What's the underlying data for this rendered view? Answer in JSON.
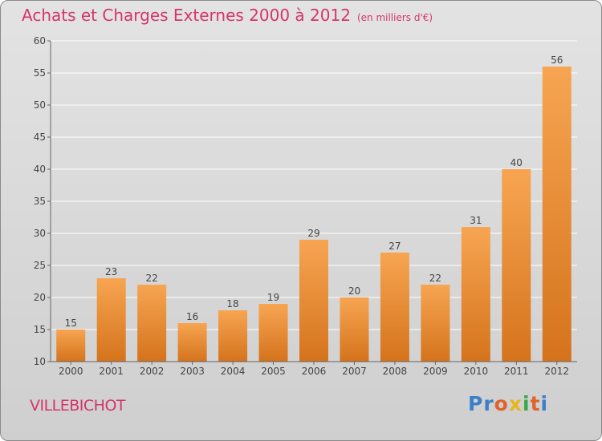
{
  "header": {
    "title": "Achats et Charges Externes 2000 à 2012",
    "unit": "(en milliers d'€)"
  },
  "footer": {
    "commune": "VILLEBICHOT",
    "logo_text": "Proxiti",
    "logo_colors": [
      "#3a7fc8",
      "#3a7fc8",
      "#e0632a",
      "#e7b61c",
      "#3aa84a",
      "#e0632a",
      "#3a7fc8"
    ]
  },
  "colors": {
    "bar_light": "#f7a552",
    "bar_dark": "#d5731c",
    "title": "#d4356b",
    "grid": "#ffffff",
    "axis": "#666666"
  },
  "chart_data": {
    "type": "bar",
    "categories": [
      "2000",
      "2001",
      "2002",
      "2003",
      "2004",
      "2005",
      "2006",
      "2007",
      "2008",
      "2009",
      "2010",
      "2011",
      "2012"
    ],
    "values": [
      15,
      23,
      22,
      16,
      18,
      19,
      29,
      20,
      27,
      22,
      31,
      40,
      56
    ],
    "ylim": [
      10,
      60
    ],
    "yticks": [
      10,
      15,
      20,
      25,
      30,
      35,
      40,
      45,
      50,
      55,
      60
    ],
    "grid": true,
    "title": "Achats et Charges Externes 2000 à 2012",
    "xlabel": "",
    "ylabel": ""
  }
}
